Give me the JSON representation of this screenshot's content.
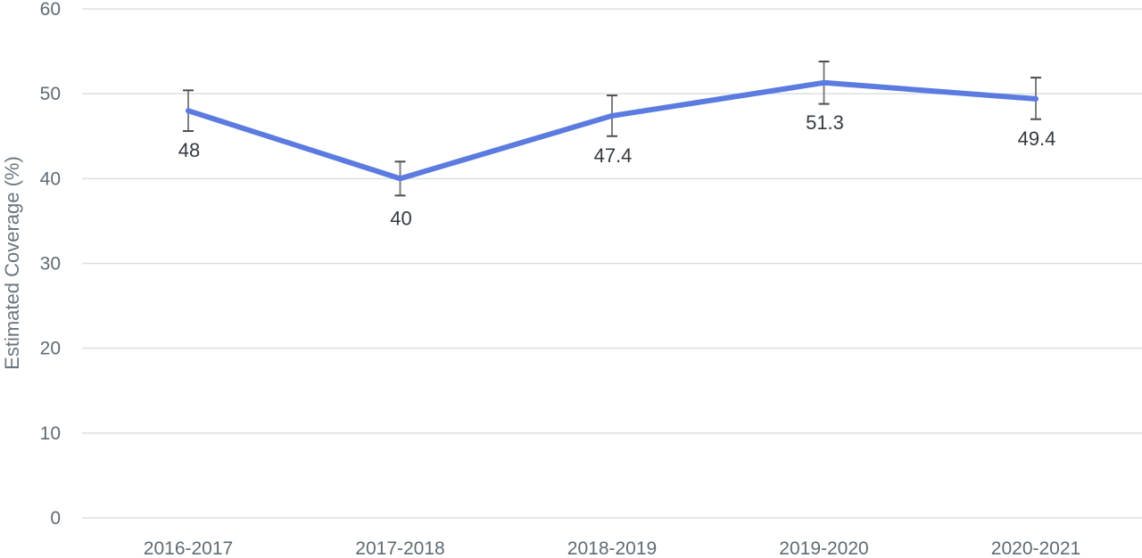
{
  "chart_data": {
    "type": "line",
    "title": "",
    "xlabel": "",
    "ylabel": "Estimated Coverage (%)",
    "ylim": [
      0,
      60
    ],
    "yticks": [
      0,
      10,
      20,
      30,
      40,
      50,
      60
    ],
    "grid": true,
    "categories": [
      "2016-2017",
      "2017-2018",
      "2018-2019",
      "2019-2020",
      "2020-2021"
    ],
    "series": [
      {
        "values": [
          48,
          40,
          47.4,
          51.3,
          49.4
        ],
        "labels": [
          "48",
          "40",
          "47.4",
          "51.3",
          "49.4"
        ],
        "error_low": [
          45.6,
          38.0,
          45.0,
          48.8,
          47.0
        ],
        "error_high": [
          50.4,
          42.0,
          49.8,
          53.8,
          51.9
        ],
        "color": "#5b7be0"
      }
    ]
  }
}
